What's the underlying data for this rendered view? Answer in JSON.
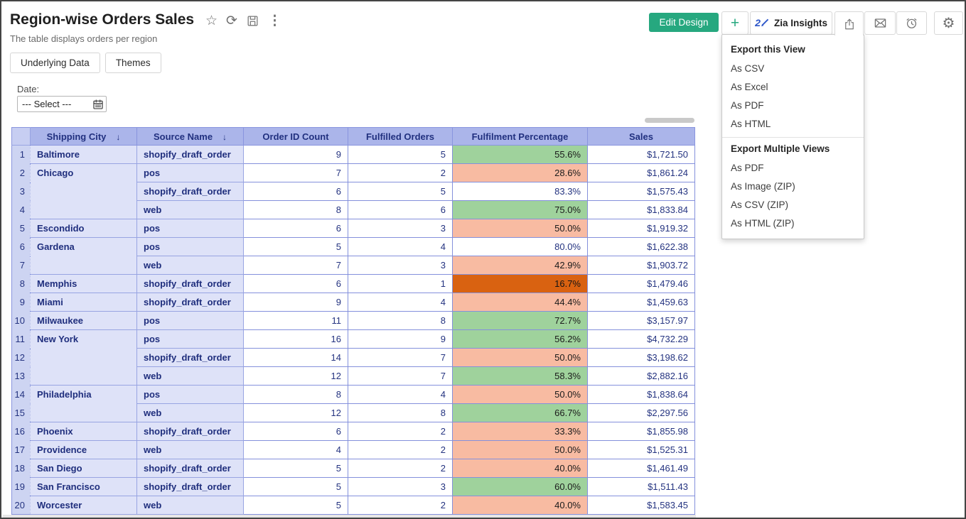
{
  "header": {
    "title": "Region-wise Orders Sales",
    "subtitle": "The table displays orders per region",
    "action_icons": [
      "star-icon",
      "refresh-icon",
      "save-icon",
      "more-icon"
    ],
    "glyphs": {
      "star": "☆",
      "refresh": "⟳",
      "more": "⋮",
      "plus": "+",
      "gear": "⚙",
      "sort_desc": "↓"
    },
    "tabs": [
      {
        "label": "Underlying Data"
      },
      {
        "label": "Themes"
      }
    ]
  },
  "toolbar": {
    "edit_design_label": "Edit Design",
    "zia_label": "Zia Insights",
    "icons": [
      "plus-icon",
      "zia-insights-icon",
      "share-icon",
      "mail-icon",
      "alarm-icon",
      "gear-icon"
    ]
  },
  "export_menu": {
    "sections": [
      {
        "title": "Export this View",
        "items": [
          "As CSV",
          "As Excel",
          "As PDF",
          "As HTML"
        ]
      },
      {
        "title": "Export Multiple Views",
        "items": [
          "As PDF",
          "As Image (ZIP)",
          "As CSV (ZIP)",
          "As HTML (ZIP)"
        ]
      }
    ]
  },
  "filter": {
    "label": "Date:",
    "value": "--- Select ---"
  },
  "colors": {
    "accent_green_button": "#26a87f",
    "zia_blue": "#2d56c9",
    "table_header_bg": "#abb5ea",
    "group_col_bg": "#dee2f8",
    "row_number_bg": "#cdd4f2",
    "grid_border": "#8995de",
    "navy_text": "#21307f",
    "pct_green": "#9fd29c",
    "pct_salmon": "#f8bba2",
    "pct_darkorange": "#d96211"
  },
  "table": {
    "columns": [
      "Shipping City",
      "Source Name",
      "Order ID Count",
      "Fulfilled Orders",
      "Fulfilment Percentage",
      "Sales"
    ],
    "sorted_desc_columns": [
      "Shipping City",
      "Source Name"
    ],
    "rows": [
      {
        "n": 1,
        "city": "Baltimore",
        "city_span": 1,
        "source": "shopify_draft_order",
        "orders": 9,
        "fulfilled": 5,
        "pct": "55.6%",
        "pct_color": "green",
        "sales": "$1,721.50"
      },
      {
        "n": 2,
        "city": "Chicago",
        "city_span": 3,
        "source": "pos",
        "orders": 7,
        "fulfilled": 2,
        "pct": "28.6%",
        "pct_color": "salmon",
        "sales": "$1,861.24"
      },
      {
        "n": 3,
        "city": null,
        "city_span": 0,
        "source": "shopify_draft_order",
        "orders": 6,
        "fulfilled": 5,
        "pct": "83.3%",
        "pct_color": "none",
        "sales": "$1,575.43"
      },
      {
        "n": 4,
        "city": null,
        "city_span": 0,
        "source": "web",
        "orders": 8,
        "fulfilled": 6,
        "pct": "75.0%",
        "pct_color": "green",
        "sales": "$1,833.84"
      },
      {
        "n": 5,
        "city": "Escondido",
        "city_span": 1,
        "source": "pos",
        "orders": 6,
        "fulfilled": 3,
        "pct": "50.0%",
        "pct_color": "salmon",
        "sales": "$1,919.32"
      },
      {
        "n": 6,
        "city": "Gardena",
        "city_span": 2,
        "source": "pos",
        "orders": 5,
        "fulfilled": 4,
        "pct": "80.0%",
        "pct_color": "none",
        "sales": "$1,622.38"
      },
      {
        "n": 7,
        "city": null,
        "city_span": 0,
        "source": "web",
        "orders": 7,
        "fulfilled": 3,
        "pct": "42.9%",
        "pct_color": "salmon",
        "sales": "$1,903.72"
      },
      {
        "n": 8,
        "city": "Memphis",
        "city_span": 1,
        "source": "shopify_draft_order",
        "orders": 6,
        "fulfilled": 1,
        "pct": "16.7%",
        "pct_color": "darkorange",
        "sales": "$1,479.46"
      },
      {
        "n": 9,
        "city": "Miami",
        "city_span": 1,
        "source": "shopify_draft_order",
        "orders": 9,
        "fulfilled": 4,
        "pct": "44.4%",
        "pct_color": "salmon",
        "sales": "$1,459.63"
      },
      {
        "n": 10,
        "city": "Milwaukee",
        "city_span": 1,
        "source": "pos",
        "orders": 11,
        "fulfilled": 8,
        "pct": "72.7%",
        "pct_color": "green",
        "sales": "$3,157.97"
      },
      {
        "n": 11,
        "city": "New York",
        "city_span": 3,
        "source": "pos",
        "orders": 16,
        "fulfilled": 9,
        "pct": "56.2%",
        "pct_color": "green",
        "sales": "$4,732.29"
      },
      {
        "n": 12,
        "city": null,
        "city_span": 0,
        "source": "shopify_draft_order",
        "orders": 14,
        "fulfilled": 7,
        "pct": "50.0%",
        "pct_color": "salmon",
        "sales": "$3,198.62"
      },
      {
        "n": 13,
        "city": null,
        "city_span": 0,
        "source": "web",
        "orders": 12,
        "fulfilled": 7,
        "pct": "58.3%",
        "pct_color": "green",
        "sales": "$2,882.16"
      },
      {
        "n": 14,
        "city": "Philadelphia",
        "city_span": 2,
        "source": "pos",
        "orders": 8,
        "fulfilled": 4,
        "pct": "50.0%",
        "pct_color": "salmon",
        "sales": "$1,838.64"
      },
      {
        "n": 15,
        "city": null,
        "city_span": 0,
        "source": "web",
        "orders": 12,
        "fulfilled": 8,
        "pct": "66.7%",
        "pct_color": "green",
        "sales": "$2,297.56"
      },
      {
        "n": 16,
        "city": "Phoenix",
        "city_span": 1,
        "source": "shopify_draft_order",
        "orders": 6,
        "fulfilled": 2,
        "pct": "33.3%",
        "pct_color": "salmon",
        "sales": "$1,855.98"
      },
      {
        "n": 17,
        "city": "Providence",
        "city_span": 1,
        "source": "web",
        "orders": 4,
        "fulfilled": 2,
        "pct": "50.0%",
        "pct_color": "salmon",
        "sales": "$1,525.31"
      },
      {
        "n": 18,
        "city": "San Diego",
        "city_span": 1,
        "source": "shopify_draft_order",
        "orders": 5,
        "fulfilled": 2,
        "pct": "40.0%",
        "pct_color": "salmon",
        "sales": "$1,461.49"
      },
      {
        "n": 19,
        "city": "San Francisco",
        "city_span": 1,
        "source": "shopify_draft_order",
        "orders": 5,
        "fulfilled": 3,
        "pct": "60.0%",
        "pct_color": "green",
        "sales": "$1,511.43"
      },
      {
        "n": 20,
        "city": "Worcester",
        "city_span": 1,
        "source": "web",
        "orders": 5,
        "fulfilled": 2,
        "pct": "40.0%",
        "pct_color": "salmon",
        "sales": "$1,583.45"
      }
    ]
  }
}
